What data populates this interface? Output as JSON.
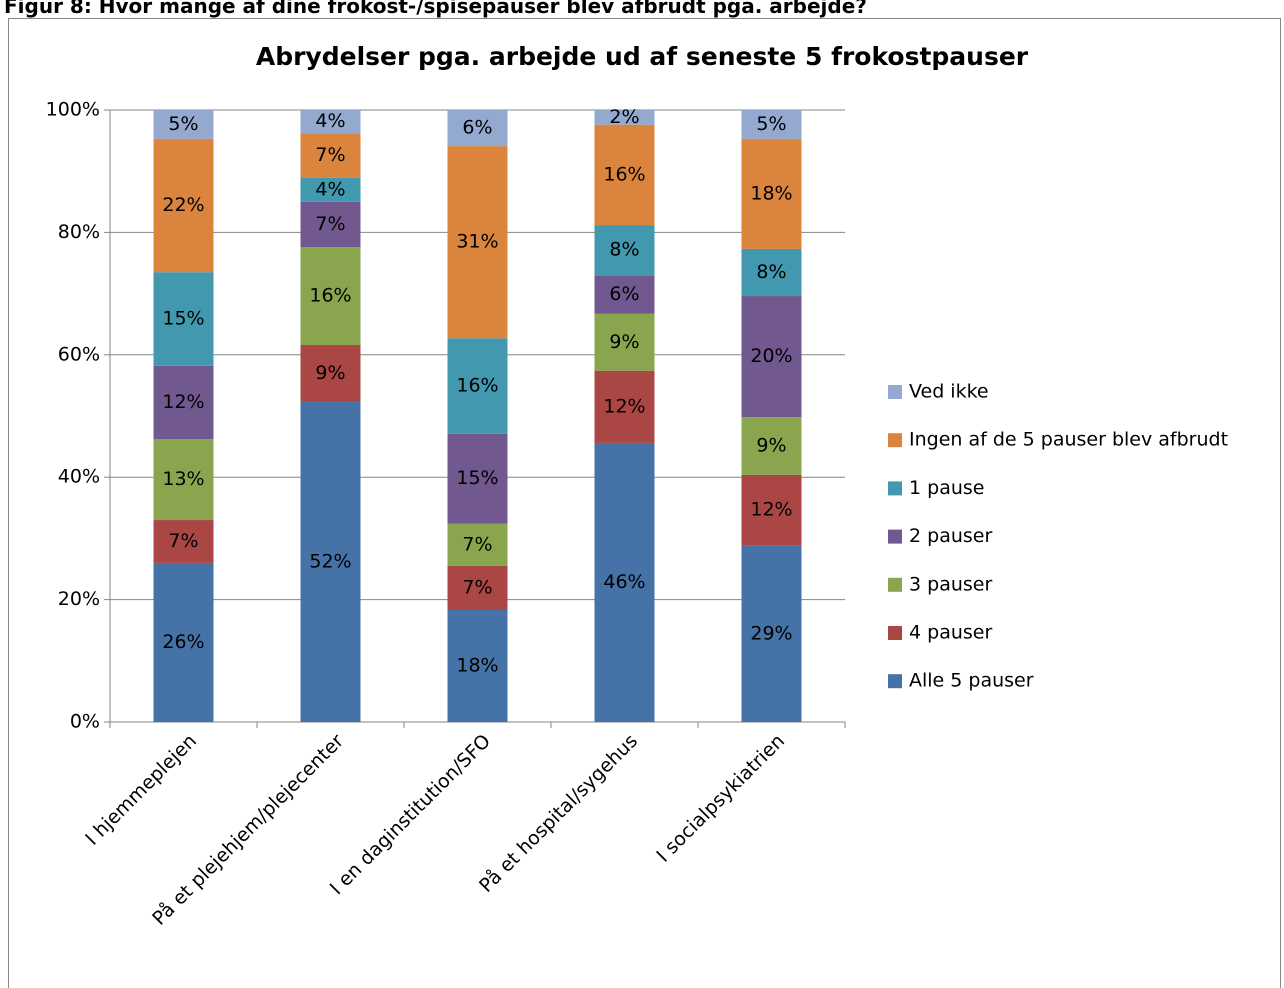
{
  "figure_caption": "Figur 8: Hvor mange af dine frokost-/spisepauser blev afbrudt pga. arbejde?",
  "chart_data": {
    "type": "stacked_bar",
    "title": "Abrydelser pga. arbejde ud af seneste 5 frokostpauser",
    "categories": [
      "I hjemmeplejen",
      "På et plejehjem/plejecenter",
      "I en daginstitution/SFO",
      "På et hospital/sygehus",
      "I socialpsykiatrien"
    ],
    "series": [
      {
        "name": "Alle 5 pauser",
        "color": "#4572a7",
        "values": [
          26.0,
          52.3,
          18.3,
          45.6,
          28.8
        ],
        "value_labels": [
          "26%",
          "52%",
          "18%",
          "46%",
          "29%"
        ]
      },
      {
        "name": "4 pauser",
        "color": "#aa4643",
        "values": [
          7.0,
          9.3,
          7.2,
          11.8,
          11.6
        ],
        "value_labels": [
          "7%",
          "9%",
          "7%",
          "12%",
          "12%"
        ]
      },
      {
        "name": "3 pauser",
        "color": "#89a54e",
        "values": [
          13.2,
          16.0,
          6.9,
          9.3,
          9.4
        ],
        "value_labels": [
          "13%",
          "16%",
          "7%",
          "9%",
          "9%"
        ]
      },
      {
        "name": "2 pauser",
        "color": "#71588f",
        "values": [
          12.0,
          7.4,
          14.7,
          6.3,
          19.8
        ],
        "value_labels": [
          "12%",
          "7%",
          "15%",
          "6%",
          "20%"
        ]
      },
      {
        "name": "1 pause",
        "color": "#4198af",
        "values": [
          15.3,
          3.9,
          15.6,
          8.2,
          7.7
        ],
        "value_labels": [
          "15%",
          "4%",
          "16%",
          "8%",
          "8%"
        ]
      },
      {
        "name": "Ingen af de 5 pauser blev afbrudt",
        "color": "#db843d",
        "values": [
          21.8,
          7.3,
          31.4,
          16.4,
          18.0
        ],
        "value_labels": [
          "22%",
          "7%",
          "31%",
          "16%",
          "18%"
        ]
      },
      {
        "name": "Ved ikke",
        "color": "#93a9cf",
        "values": [
          4.7,
          3.8,
          5.9,
          2.4,
          4.7
        ],
        "value_labels": [
          "5%",
          "4%",
          "6%",
          "2%",
          "5%"
        ]
      }
    ],
    "ylim": [
      0,
      100
    ],
    "yticks": [
      {
        "value": 0,
        "label": "0%"
      },
      {
        "value": 20,
        "label": "20%"
      },
      {
        "value": 40,
        "label": "40%"
      },
      {
        "value": 60,
        "label": "60%"
      },
      {
        "value": 80,
        "label": "80%"
      },
      {
        "value": 100,
        "label": "100%"
      }
    ],
    "grid": true,
    "legend": "right"
  }
}
